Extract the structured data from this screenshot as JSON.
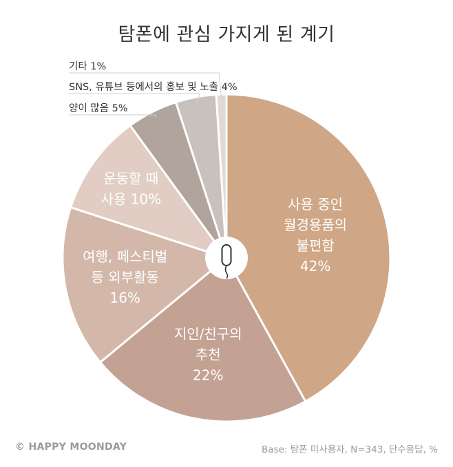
{
  "title": "탐폰에 관심 가지게 된 계기",
  "chart_data": {
    "type": "pie",
    "title": "탐폰에 관심 가지게 된 계기",
    "unit": "%",
    "slices": [
      {
        "label_lines": [
          "사용 중인",
          "월경용품의",
          "불편함"
        ],
        "value": 42,
        "value_label": "42%",
        "color": "#cfa786",
        "label_style": "inside"
      },
      {
        "label_lines": [
          "지인/친구의",
          "추천"
        ],
        "value": 22,
        "value_label": "22%",
        "color": "#c3a193",
        "label_style": "inside"
      },
      {
        "label_lines": [
          "여행, 페스티벌",
          "등 외부활동"
        ],
        "value": 16,
        "value_label": "16%",
        "color": "#d3b8aa",
        "label_style": "inside"
      },
      {
        "label_lines": [
          "운동할 때",
          "사용 10%"
        ],
        "value": 10,
        "value_label": "",
        "color": "#e1cdc3",
        "label_style": "inside"
      },
      {
        "label_lines": [
          "양이 많음 5%"
        ],
        "value": 5,
        "value_label": "",
        "color": "#b0a49c",
        "label_style": "callout"
      },
      {
        "label_lines": [
          "SNS, 유튜브 등에서의 홍보 및 노출 4%"
        ],
        "value": 4,
        "value_label": "",
        "color": "#c8c1bc",
        "label_style": "callout"
      },
      {
        "label_lines": [
          "기타 1%"
        ],
        "value": 1,
        "value_label": "",
        "color": "#dfdad6",
        "label_style": "callout"
      }
    ]
  },
  "footer": {
    "copyright": "© HAPPY MOONDAY",
    "base_note": "Base: 탐폰 미사용자, N=343, 단수응답, %"
  },
  "center_icon": "tampon-icon"
}
